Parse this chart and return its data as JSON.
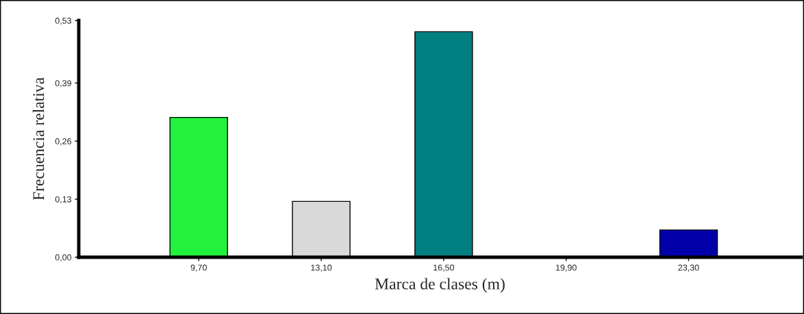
{
  "chart_data": {
    "type": "bar",
    "xlabel": "Marca de clases (m)",
    "ylabel": "Frecuencia relativa",
    "categories": [
      null,
      "9,70",
      "13,10",
      "16,50",
      "19,90",
      "23,30",
      null
    ],
    "values": [
      null,
      0.313,
      0.125,
      0.505,
      0,
      0.061,
      null
    ],
    "colors": [
      "#ffffff",
      "#22f23c",
      "#d9d9d9",
      "#008080",
      "#ffffff",
      "#0000aa",
      "#ffffff"
    ],
    "ylim": [
      0,
      0.53
    ],
    "yticks": [
      {
        "value": 0,
        "label": "0,00"
      },
      {
        "value": 0.13,
        "label": "0,13"
      },
      {
        "value": 0.26,
        "label": "0,26"
      },
      {
        "value": 0.39,
        "label": "0,39"
      },
      {
        "value": 0.53,
        "label": "0,53"
      }
    ],
    "grid": false
  }
}
